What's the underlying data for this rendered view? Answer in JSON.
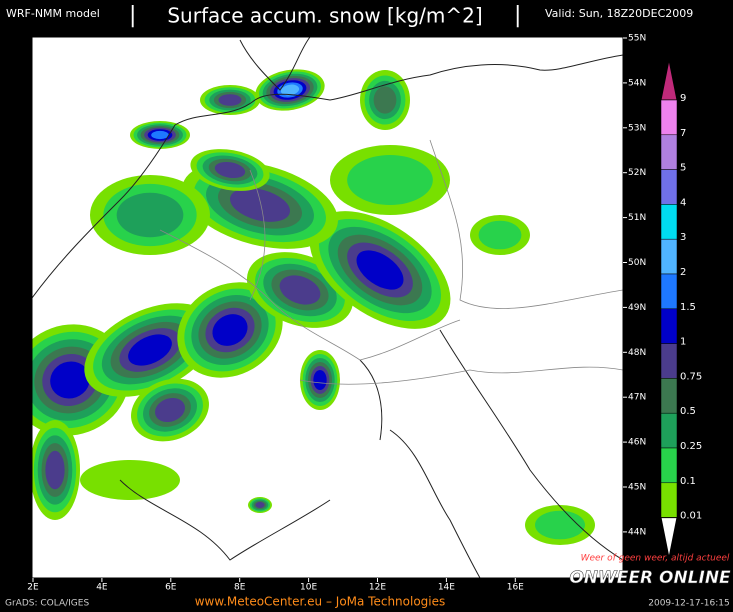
{
  "header": {
    "model": "WRF-NMM model",
    "title": "Surface accum. snow [kg/m^2]",
    "valid": "Valid: Sun, 18Z20DEC2009"
  },
  "map": {
    "lat_labels": [
      "55N",
      "54N",
      "53N",
      "52N",
      "51N",
      "50N",
      "49N",
      "48N",
      "47N",
      "46N",
      "45N",
      "44N"
    ],
    "lon_labels": [
      "2E",
      "4E",
      "6E",
      "8E",
      "10E",
      "12E",
      "14E",
      "16E"
    ]
  },
  "legend": {
    "items": [
      {
        "label": "9",
        "color": "#ee82ee"
      },
      {
        "label": "7",
        "color": "#b080e0"
      },
      {
        "label": "5",
        "color": "#7070e8"
      },
      {
        "label": "4",
        "color": "#00dcf0"
      },
      {
        "label": "3",
        "color": "#50b4ff"
      },
      {
        "label": "2",
        "color": "#1e78ff"
      },
      {
        "label": "1.5",
        "color": "#0000c8"
      },
      {
        "label": "1",
        "color": "#4b3c8c"
      },
      {
        "label": "0.75",
        "color": "#3c7850"
      },
      {
        "label": "0.5",
        "color": "#1ea05a"
      },
      {
        "label": "0.25",
        "color": "#28d24b"
      },
      {
        "label": "0.1",
        "color": "#78e000"
      },
      {
        "label": "0.01",
        "color": "#ffffff"
      }
    ],
    "top_color": "#c02a7a"
  },
  "footer": {
    "credit": "GrADS: COLA/IGES",
    "source": "www.MeteoCenter.eu  –  JoMa Technologies",
    "slogan": "Weer of geen weer, altijd actueel",
    "logo": "ONWEER ONLINE",
    "timestamp": "2009-12-17-16:15"
  }
}
